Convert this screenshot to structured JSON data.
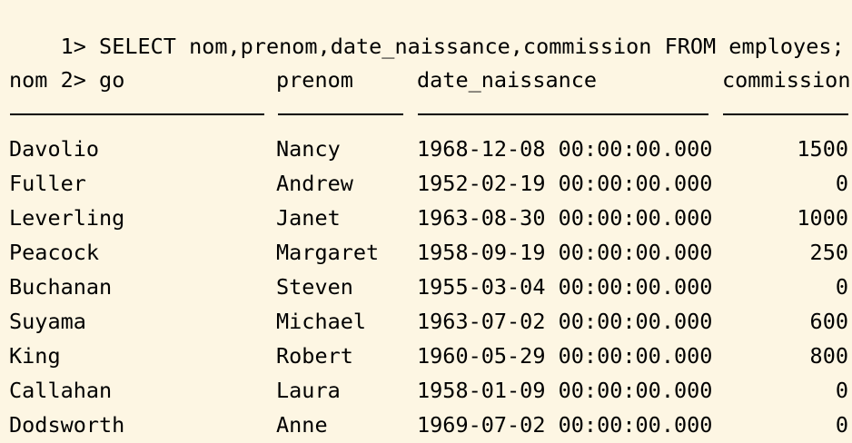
{
  "terminal": {
    "prompts": [
      {
        "number": "1>",
        "text": "SELECT nom,prenom,date_naissance,commission FROM employes;"
      },
      {
        "number": "2>",
        "text": "go"
      }
    ],
    "columns": [
      "nom",
      "prenom",
      "date_naissance",
      "commission"
    ],
    "separator": [
      "--------------------",
      "----------",
      "----------------------",
      "----------"
    ],
    "rows": [
      {
        "nom": "Davolio",
        "prenom": "Nancy",
        "date_naissance": "1968-12-08 00:00:00.000",
        "commission": "1500"
      },
      {
        "nom": "Fuller",
        "prenom": "Andrew",
        "date_naissance": "1952-02-19 00:00:00.000",
        "commission": "0"
      },
      {
        "nom": "Leverling",
        "prenom": "Janet",
        "date_naissance": "1963-08-30 00:00:00.000",
        "commission": "1000"
      },
      {
        "nom": "Peacock",
        "prenom": "Margaret",
        "date_naissance": "1958-09-19 00:00:00.000",
        "commission": "250"
      },
      {
        "nom": "Buchanan",
        "prenom": "Steven",
        "date_naissance": "1955-03-04 00:00:00.000",
        "commission": "0"
      },
      {
        "nom": "Suyama",
        "prenom": "Michael",
        "date_naissance": "1963-07-02 00:00:00.000",
        "commission": "600"
      },
      {
        "nom": "King",
        "prenom": "Robert",
        "date_naissance": "1960-05-29 00:00:00.000",
        "commission": "800"
      },
      {
        "nom": "Callahan",
        "prenom": "Laura",
        "date_naissance": "1958-01-09 00:00:00.000",
        "commission": "0"
      },
      {
        "nom": "Dodsworth",
        "prenom": "Anne",
        "date_naissance": "1969-07-02 00:00:00.000",
        "commission": "0"
      }
    ]
  }
}
